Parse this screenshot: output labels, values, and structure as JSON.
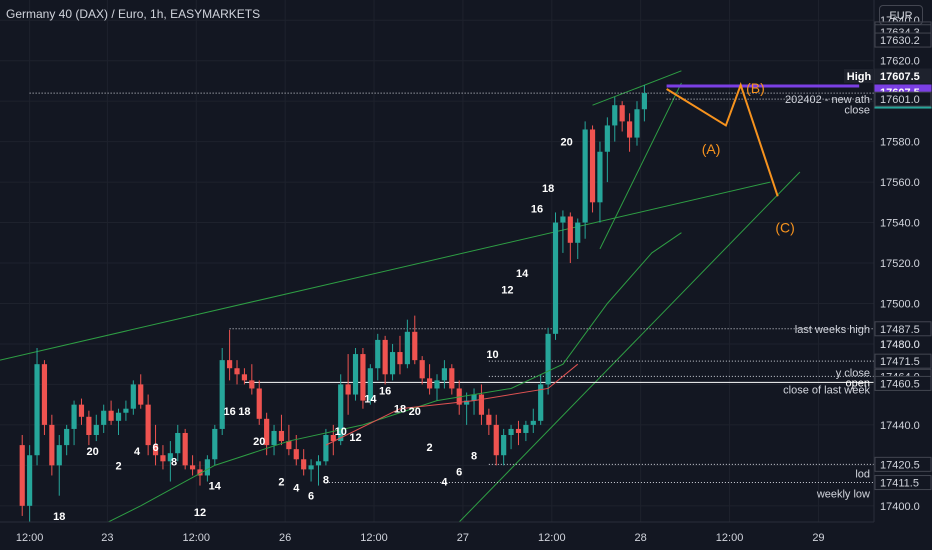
{
  "header": {
    "title": "Germany 40 (DAX) / Euro, 1h, EASYMARKETS",
    "currency_button": "EUR"
  },
  "colors": {
    "background": "#131722",
    "grid": "#1e222d",
    "text": "#d1d4dc",
    "up": "#26a69a",
    "down": "#ef5350",
    "trend": "#2e9e44",
    "ma_red": "#e05252",
    "wave": "#f7931e",
    "purple": "#7b3fe4",
    "axis_bg": "#131722"
  },
  "chart_data": {
    "type": "candlestick",
    "price_axis": {
      "range": [
        17392,
        17650
      ],
      "ticks": [
        17400.0,
        17420.0,
        17440.0,
        17460.0,
        17480.0,
        17500.0,
        17520.0,
        17540.0,
        17560.0,
        17580.0,
        17600.0,
        17620.0,
        17640.0
      ],
      "labels": [
        {
          "value": 17635.7,
          "text": "17635.7",
          "style": "boxed"
        },
        {
          "value": 17634.3,
          "text": "17634.3",
          "style": "boxed"
        },
        {
          "value": 17630.2,
          "text": "17630.2",
          "style": "boxed"
        },
        {
          "value": 17607.5,
          "text": "17607.5",
          "style": "dark",
          "tag": "High"
        },
        {
          "value": 17607.5,
          "text": "17607.5",
          "style": "purple"
        },
        {
          "value": 17604.0,
          "text": "17604.0",
          "style": "teal"
        },
        {
          "value": 17601.0,
          "text": "17601.0",
          "style": "boxed"
        },
        {
          "value": 17487.5,
          "text": "17487.5",
          "style": "boxed"
        },
        {
          "value": 17480.0,
          "text": "17480.0",
          "style": "plain"
        },
        {
          "value": 17471.5,
          "text": "17471.5",
          "style": "boxed"
        },
        {
          "value": 17464.0,
          "text": "17464.0",
          "style": "boxed"
        },
        {
          "value": 17460.5,
          "text": "17460.5",
          "style": "boxed"
        },
        {
          "value": 17420.5,
          "text": "17420.5",
          "style": "boxed"
        },
        {
          "value": 17411.5,
          "text": "17411.5",
          "style": "boxed"
        }
      ]
    },
    "time_axis": [
      {
        "text": "12:00",
        "x": 0.0
      },
      {
        "text": "23",
        "x": 10.5
      },
      {
        "text": "12:00",
        "x": 22.5
      },
      {
        "text": "26",
        "x": 34.5
      },
      {
        "text": "12:00",
        "x": 46.5
      },
      {
        "text": "27",
        "x": 58.5
      },
      {
        "text": "12:00",
        "x": 70.5
      },
      {
        "text": "28",
        "x": 82.5
      },
      {
        "text": "12:00",
        "x": 94.5
      },
      {
        "text": "29",
        "x": 106.5
      }
    ],
    "x_range": [
      -4,
      114
    ],
    "candles": [
      [
        17430,
        17435,
        17395,
        17400
      ],
      [
        17400,
        17430,
        17390,
        17425
      ],
      [
        17425,
        17478,
        17420,
        17470
      ],
      [
        17470,
        17472,
        17435,
        17440
      ],
      [
        17440,
        17445,
        17415,
        17420
      ],
      [
        17420,
        17435,
        17405,
        17430
      ],
      [
        17430,
        17440,
        17425,
        17438
      ],
      [
        17438,
        17452,
        17430,
        17450
      ],
      [
        17450,
        17453,
        17440,
        17444
      ],
      [
        17444,
        17447,
        17430,
        17435
      ],
      [
        17435,
        17445,
        17432,
        17440
      ],
      [
        17440,
        17450,
        17436,
        17447
      ],
      [
        17447,
        17452,
        17440,
        17442
      ],
      [
        17442,
        17448,
        17435,
        17446
      ],
      [
        17446,
        17452,
        17442,
        17448
      ],
      [
        17448,
        17462,
        17445,
        17460
      ],
      [
        17460,
        17465,
        17448,
        17450
      ],
      [
        17450,
        17455,
        17425,
        17430
      ],
      [
        17430,
        17440,
        17420,
        17425
      ],
      [
        17425,
        17430,
        17418,
        17422
      ],
      [
        17422,
        17432,
        17412,
        17426
      ],
      [
        17426,
        17440,
        17422,
        17436
      ],
      [
        17436,
        17438,
        17418,
        17420
      ],
      [
        17420,
        17425,
        17415,
        17418
      ],
      [
        17418,
        17422,
        17410,
        17415
      ],
      [
        17415,
        17425,
        17412,
        17423
      ],
      [
        17423,
        17440,
        17420,
        17438
      ],
      [
        17438,
        17478,
        17435,
        17472
      ],
      [
        17472,
        17487,
        17462,
        17468
      ],
      [
        17468,
        17472,
        17460,
        17465
      ],
      [
        17465,
        17468,
        17460,
        17462
      ],
      [
        17462,
        17470,
        17455,
        17458
      ],
      [
        17458,
        17462,
        17440,
        17443
      ],
      [
        17443,
        17446,
        17425,
        17430
      ],
      [
        17430,
        17440,
        17425,
        17437
      ],
      [
        17437,
        17445,
        17430,
        17432
      ],
      [
        17432,
        17440,
        17425,
        17428
      ],
      [
        17428,
        17435,
        17420,
        17423
      ],
      [
        17423,
        17428,
        17415,
        17418
      ],
      [
        17418,
        17423,
        17412,
        17420
      ],
      [
        17420,
        17425,
        17410,
        17422
      ],
      [
        17422,
        17438,
        17420,
        17435
      ],
      [
        17435,
        17440,
        17425,
        17432
      ],
      [
        17432,
        17465,
        17430,
        17460
      ],
      [
        17460,
        17475,
        17445,
        17455
      ],
      [
        17455,
        17478,
        17452,
        17475
      ],
      [
        17475,
        17478,
        17448,
        17452
      ],
      [
        17452,
        17470,
        17450,
        17468
      ],
      [
        17468,
        17485,
        17462,
        17482
      ],
      [
        17482,
        17484,
        17460,
        17465
      ],
      [
        17465,
        17480,
        17462,
        17476
      ],
      [
        17476,
        17484,
        17465,
        17470
      ],
      [
        17470,
        17492,
        17468,
        17486
      ],
      [
        17486,
        17494,
        17470,
        17472
      ],
      [
        17472,
        17474,
        17460,
        17463
      ],
      [
        17463,
        17470,
        17455,
        17458
      ],
      [
        17458,
        17465,
        17452,
        17462
      ],
      [
        17462,
        17472,
        17458,
        17468
      ],
      [
        17468,
        17470,
        17455,
        17458
      ],
      [
        17458,
        17462,
        17445,
        17450
      ],
      [
        17450,
        17456,
        17440,
        17452
      ],
      [
        17452,
        17458,
        17445,
        17455
      ],
      [
        17455,
        17460,
        17440,
        17445
      ],
      [
        17445,
        17448,
        17435,
        17440
      ],
      [
        17440,
        17445,
        17420,
        17425
      ],
      [
        17425,
        17438,
        17420,
        17435
      ],
      [
        17435,
        17440,
        17428,
        17438
      ],
      [
        17438,
        17442,
        17430,
        17436
      ],
      [
        17436,
        17442,
        17432,
        17440
      ],
      [
        17440,
        17448,
        17436,
        17442
      ],
      [
        17442,
        17465,
        17440,
        17460
      ],
      [
        17460,
        17488,
        17455,
        17485
      ],
      [
        17485,
        17545,
        17482,
        17540
      ],
      [
        17540,
        17546,
        17525,
        17543
      ],
      [
        17543,
        17545,
        17520,
        17530
      ],
      [
        17530,
        17542,
        17522,
        17540
      ],
      [
        17540,
        17590,
        17532,
        17586
      ],
      [
        17586,
        17588,
        17545,
        17550
      ],
      [
        17550,
        17580,
        17540,
        17575
      ],
      [
        17575,
        17592,
        17560,
        17588
      ],
      [
        17588,
        17602,
        17580,
        17598
      ],
      [
        17598,
        17600,
        17585,
        17590
      ],
      [
        17590,
        17594,
        17575,
        17582
      ],
      [
        17582,
        17600,
        17578,
        17596
      ],
      [
        17596,
        17608,
        17590,
        17604
      ]
    ],
    "candle_x_start": -1.0,
    "candle_x_step": 1.0,
    "moving_average": [
      [
        40,
        17430
      ],
      [
        50,
        17448
      ],
      [
        60,
        17452
      ],
      [
        70,
        17458
      ],
      [
        74,
        17470
      ]
    ],
    "green_ma": [
      [
        4,
        17380
      ],
      [
        15,
        17400
      ],
      [
        25,
        17420
      ],
      [
        35,
        17432
      ],
      [
        45,
        17440
      ],
      [
        55,
        17452
      ],
      [
        65,
        17458
      ],
      [
        72,
        17470
      ],
      [
        78,
        17500
      ],
      [
        84,
        17525
      ],
      [
        88,
        17535
      ]
    ],
    "trend_lines": [
      {
        "from": [
          -4,
          17472
        ],
        "to": [
          100,
          17560
        ]
      },
      {
        "from": [
          58,
          17392
        ],
        "to": [
          104,
          17565
        ]
      },
      {
        "from": [
          76,
          17598
        ],
        "to": [
          88,
          17615
        ]
      },
      {
        "from": [
          77,
          17527
        ],
        "to": [
          88,
          17609
        ]
      }
    ],
    "purple_line": {
      "from": [
        86,
        17607.5
      ],
      "to": [
        112,
        17607.5
      ]
    },
    "wave_path": [
      [
        86,
        17606
      ],
      [
        94,
        17588
      ],
      [
        96,
        17608
      ],
      [
        101,
        17553
      ]
    ],
    "wave_labels": [
      {
        "text": "(B)",
        "x": 98,
        "y": 17604
      },
      {
        "text": "(A)",
        "x": 92,
        "y": 17574
      },
      {
        "text": "(C)",
        "x": 102,
        "y": 17535
      }
    ],
    "hour_labels": [
      {
        "text": "18",
        "x": 4,
        "y": 17393
      },
      {
        "text": "20",
        "x": 8.5,
        "y": 17425
      },
      {
        "text": "2",
        "x": 12,
        "y": 17418
      },
      {
        "text": "4",
        "x": 14.5,
        "y": 17425
      },
      {
        "text": "6",
        "x": 17,
        "y": 17427
      },
      {
        "text": "8",
        "x": 19.5,
        "y": 17420
      },
      {
        "text": "12",
        "x": 23,
        "y": 17395
      },
      {
        "text": "14",
        "x": 25,
        "y": 17408
      },
      {
        "text": "16",
        "x": 27,
        "y": 17445
      },
      {
        "text": "18",
        "x": 29,
        "y": 17445
      },
      {
        "text": "20",
        "x": 31,
        "y": 17430
      },
      {
        "text": "2",
        "x": 34,
        "y": 17410
      },
      {
        "text": "4",
        "x": 36,
        "y": 17407
      },
      {
        "text": "6",
        "x": 38,
        "y": 17403
      },
      {
        "text": "8",
        "x": 40,
        "y": 17411
      },
      {
        "text": "10",
        "x": 42,
        "y": 17435
      },
      {
        "text": "12",
        "x": 44,
        "y": 17432
      },
      {
        "text": "14",
        "x": 46,
        "y": 17451
      },
      {
        "text": "16",
        "x": 48,
        "y": 17455
      },
      {
        "text": "18",
        "x": 50,
        "y": 17446
      },
      {
        "text": "20",
        "x": 52,
        "y": 17445
      },
      {
        "text": "2",
        "x": 54,
        "y": 17427
      },
      {
        "text": "4",
        "x": 56,
        "y": 17410
      },
      {
        "text": "6",
        "x": 58,
        "y": 17415
      },
      {
        "text": "8",
        "x": 60,
        "y": 17423
      },
      {
        "text": "10",
        "x": 62.5,
        "y": 17473
      },
      {
        "text": "12",
        "x": 64.5,
        "y": 17505
      },
      {
        "text": "14",
        "x": 66.5,
        "y": 17513
      },
      {
        "text": "16",
        "x": 68.5,
        "y": 17545
      },
      {
        "text": "18",
        "x": 70,
        "y": 17555
      },
      {
        "text": "20",
        "x": 72.5,
        "y": 17578
      }
    ],
    "level_lines": [
      {
        "value": 17604.0,
        "style": "dotted",
        "x_from": 0,
        "label": "",
        "color": "#d1d4dc"
      },
      {
        "value": 17601.0,
        "style": "dotted",
        "x_from": 86,
        "label": "202402 - new ath",
        "color": "#d1d4dc"
      },
      {
        "value": 17596.0,
        "style": "none",
        "x_from": 86,
        "label": "close",
        "color": "#d1d4dc"
      },
      {
        "value": 17487.5,
        "style": "dotted",
        "x_from": 27,
        "label": "last weeks high",
        "color": "#d1d4dc"
      },
      {
        "value": 17471.5,
        "style": "dotted",
        "x_from": 62,
        "label": "",
        "color": "#d1d4dc"
      },
      {
        "value": 17466.0,
        "style": "none",
        "x_from": 62,
        "label": "y close",
        "color": "#d1d4dc"
      },
      {
        "value": 17464.0,
        "style": "dotted",
        "x_from": 62,
        "label": "",
        "color": "#d1d4dc"
      },
      {
        "value": 17461.0,
        "style": "solid",
        "x_from": 29,
        "label": "open",
        "color": "#ffffff"
      },
      {
        "value": 17457.5,
        "style": "none",
        "x_from": 62,
        "label": "close of last week",
        "color": "#d1d4dc"
      },
      {
        "value": 17420.5,
        "style": "dotted",
        "x_from": 62,
        "label": "",
        "color": "#d1d4dc"
      },
      {
        "value": 17416.0,
        "style": "none",
        "x_from": 62,
        "label": "lod",
        "color": "#d1d4dc"
      },
      {
        "value": 17411.5,
        "style": "dotted",
        "x_from": 40,
        "label": "",
        "color": "#d1d4dc"
      },
      {
        "value": 17406.0,
        "style": "none",
        "x_from": 62,
        "label": "weekly low",
        "color": "#d1d4dc"
      }
    ]
  }
}
